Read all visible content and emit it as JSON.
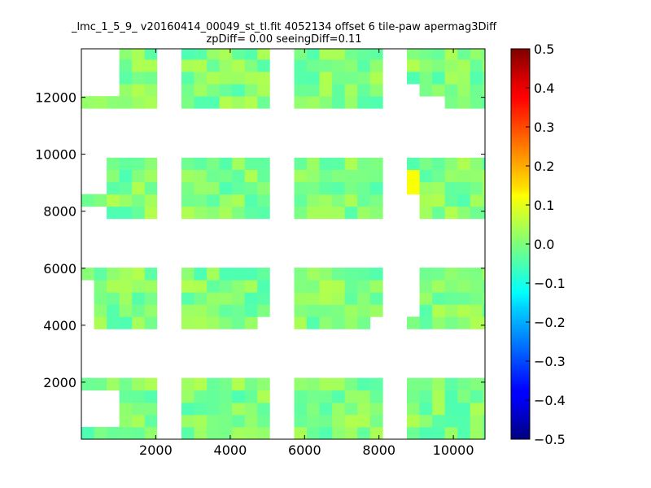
{
  "chart_data": {
    "type": "heatmap",
    "title_line1": "_lmc_1_5_9_ v20160414_00049_st_tl.fit 4052134 offset 6 tile-paw apermag3Diff",
    "title_line2": "zpDiff= 0.00 seeingDiff=0.11",
    "xlabel": "",
    "ylabel": "",
    "xlim": [
      0,
      10850
    ],
    "ylim": [
      0,
      13700
    ],
    "xticks": [
      2000,
      4000,
      6000,
      8000,
      10000
    ],
    "xtick_labels": [
      "2000",
      "4000",
      "6000",
      "8000",
      "10000"
    ],
    "yticks": [
      2000,
      4000,
      6000,
      8000,
      10000,
      12000
    ],
    "ytick_labels": [
      "2000",
      "4000",
      "6000",
      "8000",
      "10000",
      "12000"
    ],
    "colorbar": {
      "colormap": "jet",
      "vmin": -0.5,
      "vmax": 0.5,
      "ticks": [
        0.5,
        0.4,
        0.3,
        0.2,
        0.1,
        0.0,
        -0.1,
        -0.2,
        -0.3,
        -0.4,
        -0.5
      ],
      "tick_labels": [
        "0.5",
        "0.4",
        "0.3",
        "0.2",
        "0.1",
        "0.0",
        "−0.1",
        "−0.2",
        "−0.3",
        "−0.4",
        "−0.5"
      ]
    },
    "cell_width": 340,
    "cell_height": 430,
    "detector_x_ranges": [
      [
        0,
        2030
      ],
      [
        2690,
        5060
      ],
      [
        5720,
        8100
      ],
      [
        8750,
        10850
      ]
    ],
    "detector_y_ranges": [
      [
        0,
        2150
      ],
      [
        3870,
        6020
      ],
      [
        7740,
        9880
      ],
      [
        11610,
        13700
      ]
    ],
    "hot_cell": {
      "x": 8700,
      "y": 9200,
      "value": 0.12
    },
    "value_range_typical": [
      -0.05,
      0.05
    ]
  }
}
